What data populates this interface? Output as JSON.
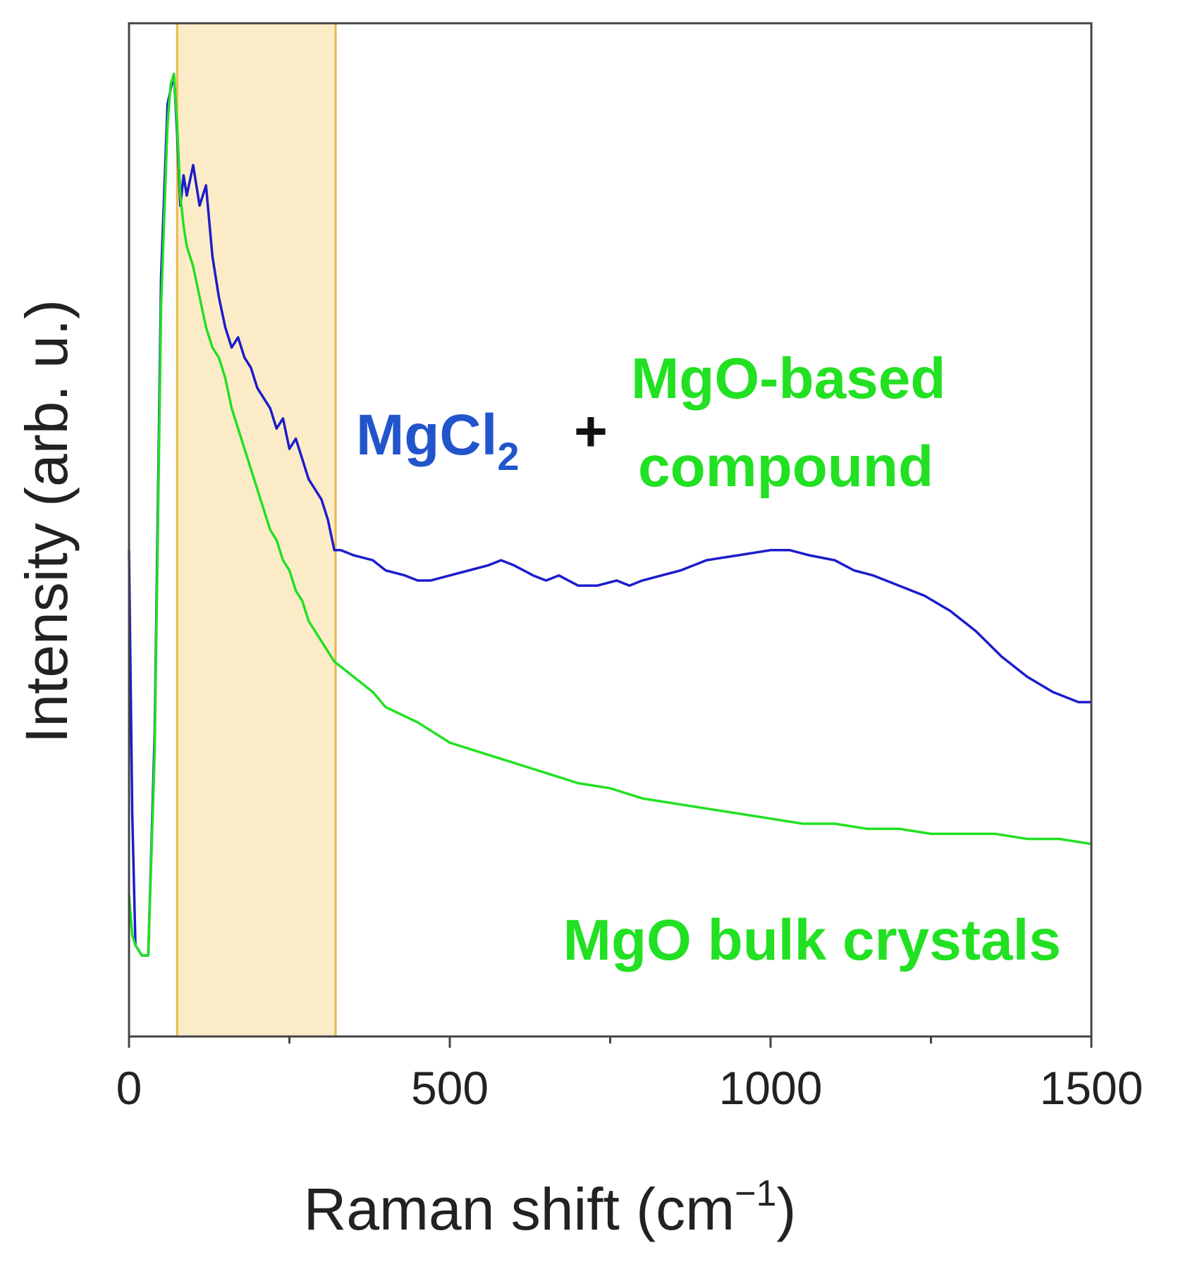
{
  "chart_data": {
    "type": "line",
    "xlabel_main": "Raman shift (cm",
    "xlabel_sup": "−1",
    "xlabel_close": ")",
    "ylabel": "Intensity (arb. u.)",
    "xlim": [
      0,
      1500
    ],
    "ylim": [
      0,
      100
    ],
    "x_ticks": [
      0,
      500,
      1000,
      1500
    ],
    "x_tick_labels": [
      "0",
      "500",
      "1000",
      "1500"
    ],
    "y_ticks": [],
    "grid": false,
    "legend": "none",
    "highlight_band": {
      "x": [
        75,
        322
      ],
      "color": "#fbecc7",
      "edge": "#e8b84a"
    },
    "series": [
      {
        "color": "#1c1ccc",
        "x": [
          0,
          5,
          10,
          20,
          30,
          40,
          50,
          60,
          70,
          75,
          80,
          85,
          90,
          100,
          110,
          120,
          130,
          140,
          150,
          160,
          170,
          180,
          190,
          200,
          210,
          220,
          230,
          240,
          250,
          260,
          270,
          280,
          290,
          300,
          310,
          320,
          330,
          350,
          380,
          400,
          430,
          450,
          470,
          500,
          530,
          560,
          580,
          600,
          630,
          650,
          670,
          700,
          730,
          760,
          780,
          800,
          830,
          860,
          900,
          950,
          1000,
          1030,
          1060,
          1100,
          1130,
          1160,
          1200,
          1240,
          1280,
          1320,
          1360,
          1400,
          1440,
          1480,
          1500
        ],
        "y": [
          48,
          22,
          9,
          8,
          8,
          30,
          75,
          92,
          95,
          89,
          82,
          85,
          83,
          86,
          82,
          84,
          77,
          73,
          70,
          68,
          69,
          67,
          66,
          64,
          63,
          62,
          60,
          61,
          58,
          59,
          57,
          55,
          54,
          53,
          51,
          48,
          48,
          47.5,
          47,
          46,
          45.5,
          45,
          45,
          45.5,
          46,
          46.5,
          47,
          46.5,
          45.5,
          45,
          45.5,
          44.5,
          44.5,
          45,
          44.5,
          45,
          45.5,
          46,
          47,
          47.5,
          48,
          48,
          47.5,
          47,
          46,
          45.5,
          44.5,
          43.5,
          42,
          40,
          37.5,
          35.5,
          34,
          33,
          33
        ]
      },
      {
        "color": "#22e022",
        "x": [
          0,
          5,
          10,
          20,
          30,
          40,
          50,
          60,
          65,
          70,
          75,
          80,
          85,
          90,
          100,
          110,
          120,
          130,
          140,
          150,
          160,
          170,
          180,
          190,
          200,
          210,
          220,
          230,
          240,
          250,
          260,
          270,
          280,
          290,
          300,
          320,
          350,
          380,
          400,
          450,
          500,
          550,
          600,
          650,
          700,
          750,
          800,
          850,
          900,
          950,
          1000,
          1050,
          1100,
          1150,
          1200,
          1250,
          1300,
          1350,
          1400,
          1450,
          1500
        ],
        "y": [
          14,
          10,
          9,
          8,
          8,
          28,
          72,
          90,
          94,
          95,
          90,
          83,
          80,
          78,
          76,
          73,
          70,
          68,
          67,
          65,
          62,
          60,
          58,
          56,
          54,
          52,
          50,
          49,
          47,
          46,
          44,
          43,
          41,
          40,
          39,
          37,
          35.5,
          34,
          32.5,
          31,
          29,
          28,
          27,
          26,
          25,
          24.5,
          23.5,
          23,
          22.5,
          22,
          21.5,
          21,
          21,
          20.5,
          20.5,
          20,
          20,
          20,
          19.5,
          19.5,
          19
        ]
      }
    ],
    "annotations": {
      "mgcl_main": "MgCl",
      "mgcl_sub": "2",
      "plus": "+",
      "mgo_line1": "MgO-based",
      "mgo_line2": "compound",
      "mgo_bulk": "MgO bulk crystals"
    },
    "annotation_colors": {
      "blue": "#2255cc",
      "green": "#22e022",
      "plus": "#111111"
    }
  }
}
